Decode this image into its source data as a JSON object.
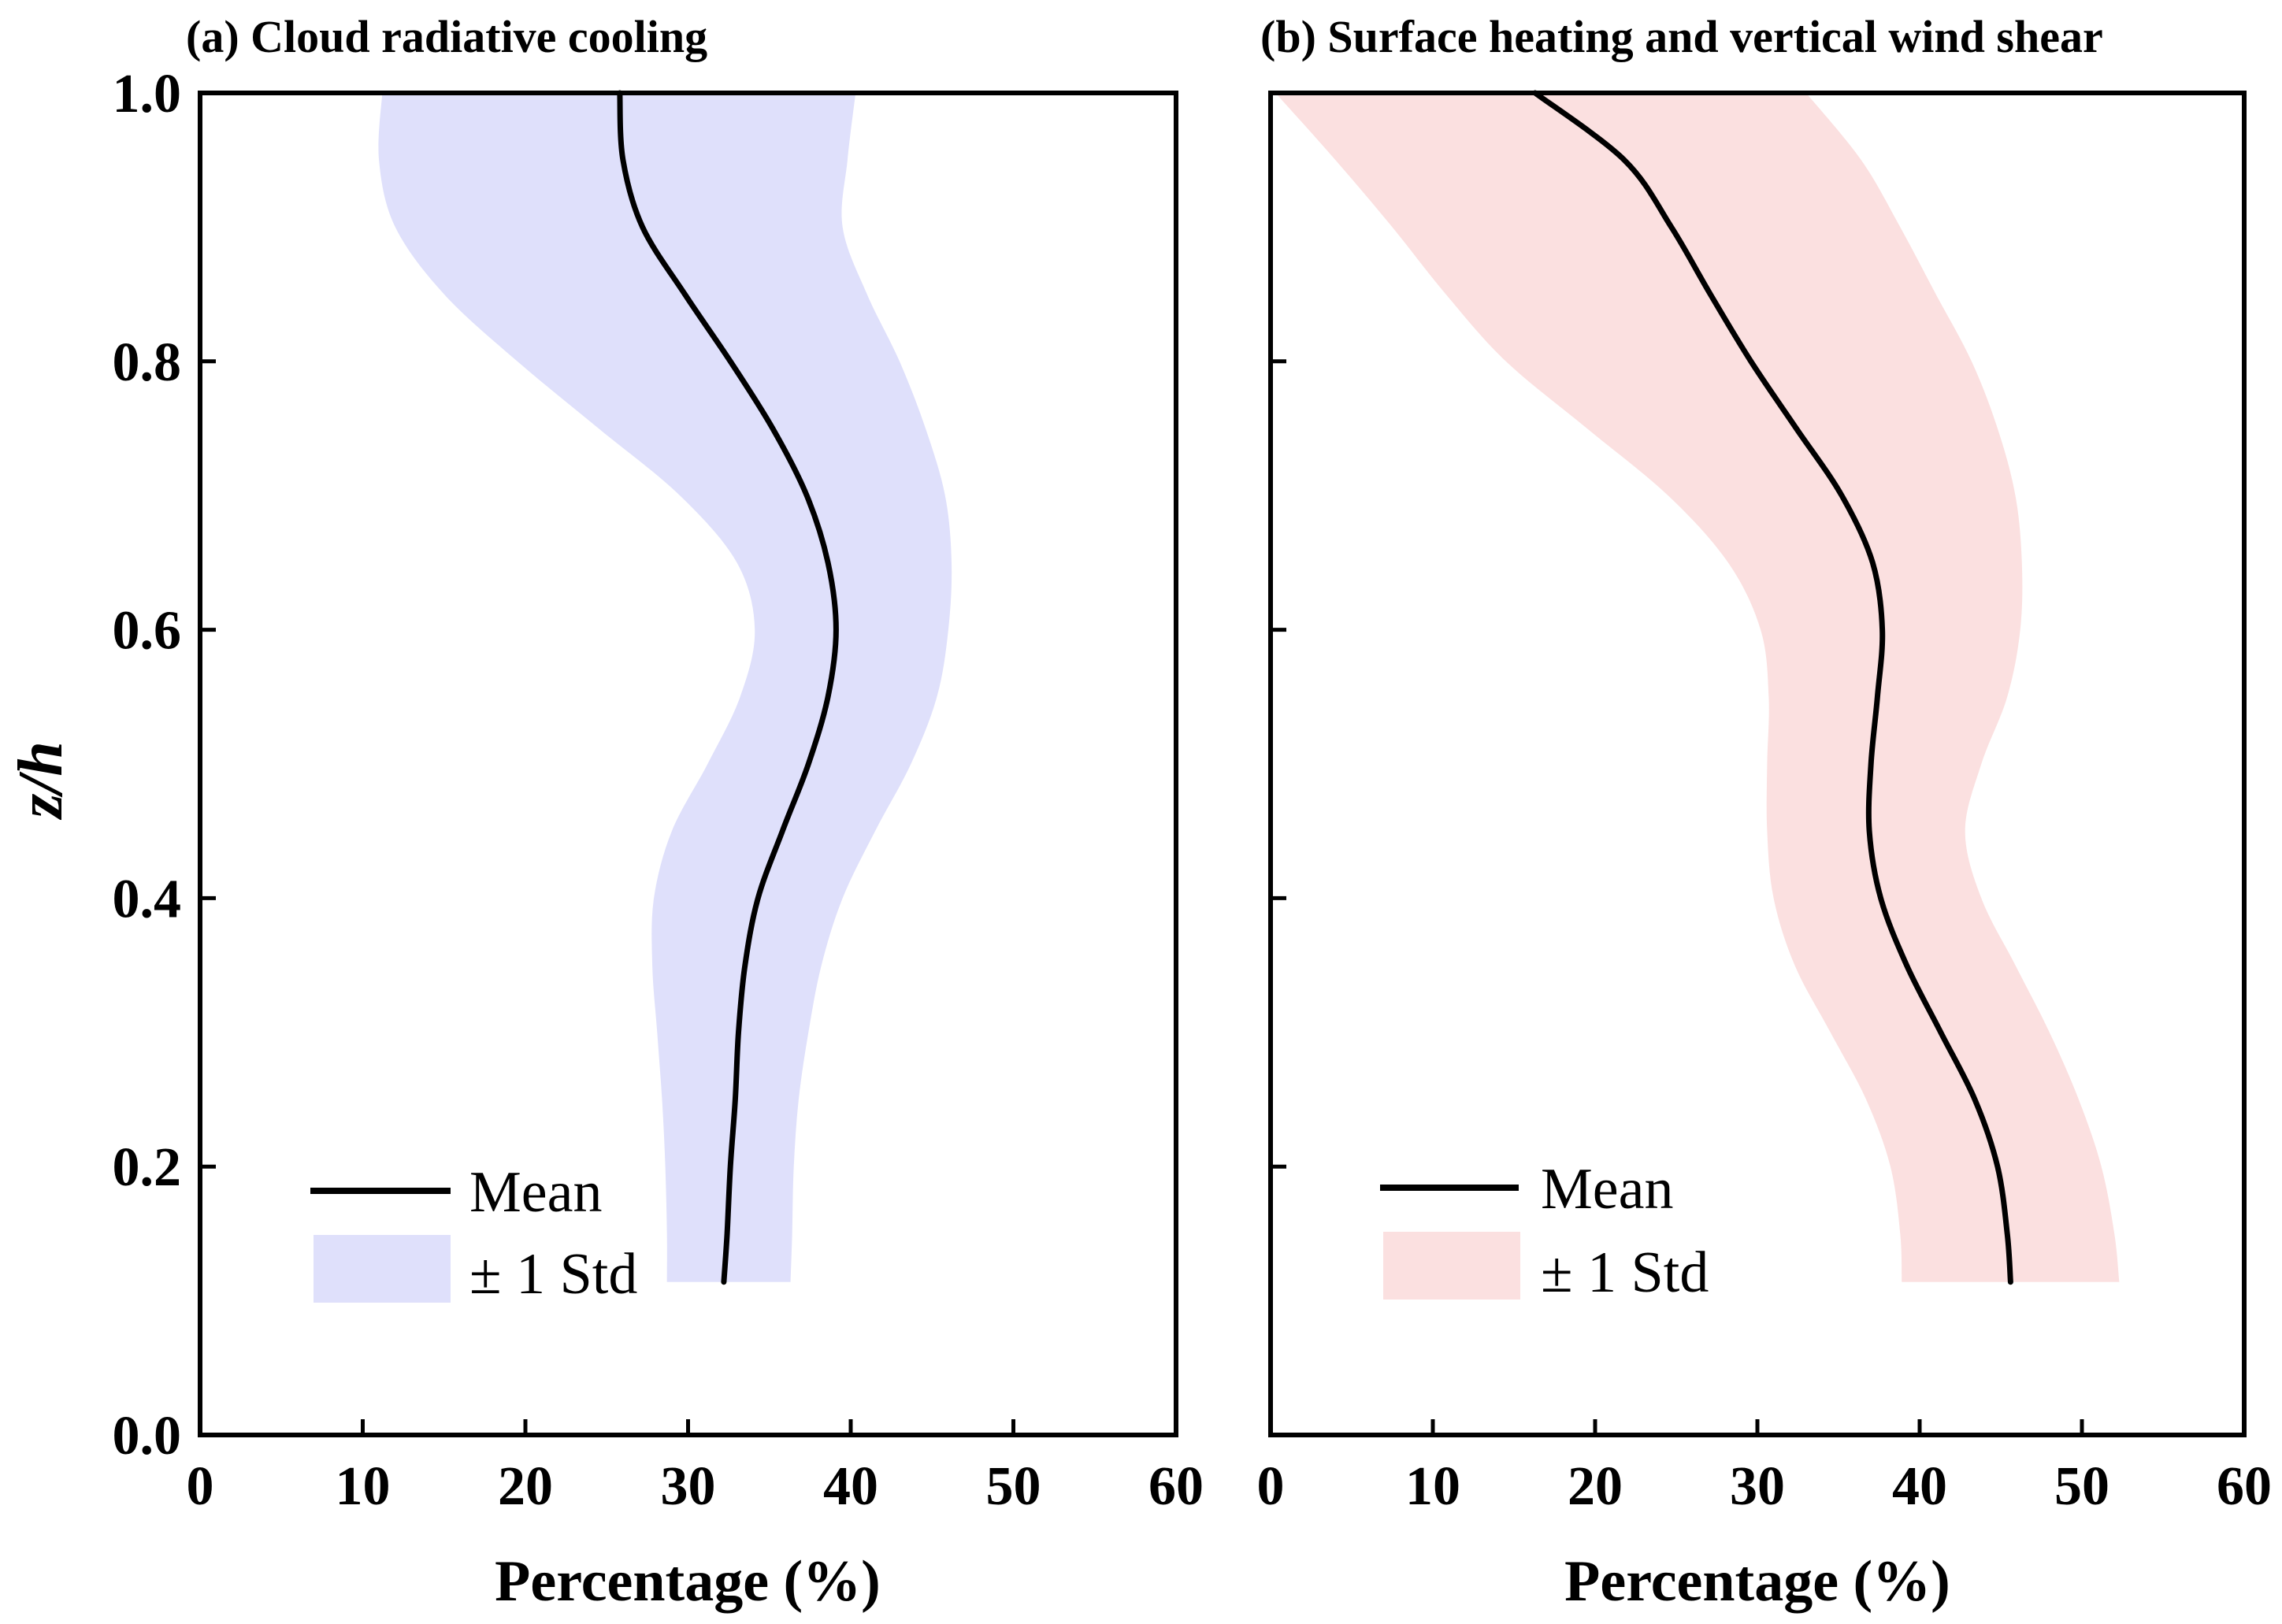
{
  "chart_data": [
    {
      "type": "line",
      "title": "(a) Cloud radiative cooling",
      "xlabel": "Percentage (%)",
      "ylabel": "z/h",
      "xlim": [
        0,
        60
      ],
      "ylim": [
        0,
        1.0
      ],
      "xticks": [
        "0",
        "10",
        "20",
        "30",
        "40",
        "50",
        "60"
      ],
      "yticks": [
        "0.0",
        "0.2",
        "0.4",
        "0.6",
        "0.8",
        "1.0"
      ],
      "legend": {
        "mean_label": "Mean",
        "std_label": "± 1 Std",
        "position": "lower-left"
      },
      "band_color": "#dfe0fb",
      "series": [
        {
          "name": "Mean",
          "points": [
            [
              32.2,
              0.114
            ],
            [
              32.4,
              0.15
            ],
            [
              32.6,
              0.2
            ],
            [
              32.9,
              0.25
            ],
            [
              33.1,
              0.3
            ],
            [
              33.5,
              0.35
            ],
            [
              34.3,
              0.4
            ],
            [
              35.8,
              0.45
            ],
            [
              37.4,
              0.5
            ],
            [
              38.6,
              0.55
            ],
            [
              39.1,
              0.6
            ],
            [
              38.6,
              0.65
            ],
            [
              37.3,
              0.7
            ],
            [
              35.2,
              0.75
            ],
            [
              32.6,
              0.8
            ],
            [
              29.8,
              0.85
            ],
            [
              27.2,
              0.9
            ],
            [
              26.0,
              0.95
            ],
            [
              25.8,
              1.0
            ]
          ]
        },
        {
          "name": "± 1 Std",
          "lower": [
            [
              28.7,
              0.114
            ],
            [
              28.7,
              0.15
            ],
            [
              28.6,
              0.2
            ],
            [
              28.4,
              0.25
            ],
            [
              28.1,
              0.3
            ],
            [
              27.8,
              0.35
            ],
            [
              27.9,
              0.4
            ],
            [
              29.0,
              0.45
            ],
            [
              31.2,
              0.5
            ],
            [
              33.2,
              0.55
            ],
            [
              34.1,
              0.6
            ],
            [
              33.0,
              0.65
            ],
            [
              29.5,
              0.7
            ],
            [
              24.5,
              0.75
            ],
            [
              19.5,
              0.8
            ],
            [
              15.0,
              0.85
            ],
            [
              12.0,
              0.9
            ],
            [
              11.0,
              0.95
            ],
            [
              11.2,
              1.0
            ]
          ],
          "upper": [
            [
              36.3,
              0.114
            ],
            [
              36.4,
              0.15
            ],
            [
              36.5,
              0.2
            ],
            [
              36.8,
              0.25
            ],
            [
              37.4,
              0.3
            ],
            [
              38.2,
              0.35
            ],
            [
              39.5,
              0.4
            ],
            [
              41.5,
              0.45
            ],
            [
              43.7,
              0.5
            ],
            [
              45.3,
              0.55
            ],
            [
              46.0,
              0.6
            ],
            [
              46.2,
              0.65
            ],
            [
              45.8,
              0.7
            ],
            [
              44.6,
              0.75
            ],
            [
              43.0,
              0.8
            ],
            [
              41.0,
              0.85
            ],
            [
              39.5,
              0.9
            ],
            [
              39.8,
              0.95
            ],
            [
              40.3,
              1.0
            ]
          ]
        }
      ]
    },
    {
      "type": "line",
      "title": "(b) Surface heating and vertical wind shear",
      "xlabel": "Percentage (%)",
      "ylabel": "",
      "xlim": [
        0,
        60
      ],
      "ylim": [
        0,
        1.0
      ],
      "xticks": [
        "0",
        "10",
        "20",
        "30",
        "40",
        "50",
        "60"
      ],
      "yticks": [],
      "legend": {
        "mean_label": "Mean",
        "std_label": "± 1 Std",
        "position": "lower-left"
      },
      "band_color": "#fbe0e0",
      "series": [
        {
          "name": "Mean",
          "points": [
            [
              45.6,
              0.114
            ],
            [
              45.4,
              0.15
            ],
            [
              44.8,
              0.2
            ],
            [
              43.4,
              0.25
            ],
            [
              41.3,
              0.3
            ],
            [
              39.2,
              0.35
            ],
            [
              37.6,
              0.4
            ],
            [
              36.9,
              0.45
            ],
            [
              37.0,
              0.5
            ],
            [
              37.4,
              0.55
            ],
            [
              37.7,
              0.6
            ],
            [
              37.1,
              0.65
            ],
            [
              35.2,
              0.7
            ],
            [
              32.4,
              0.75
            ],
            [
              29.6,
              0.8
            ],
            [
              27.1,
              0.85
            ],
            [
              24.7,
              0.9
            ],
            [
              21.8,
              0.95
            ],
            [
              16.3,
              1.0
            ]
          ]
        },
        {
          "name": "± 1 Std",
          "lower": [
            [
              38.9,
              0.114
            ],
            [
              38.8,
              0.15
            ],
            [
              38.2,
              0.2
            ],
            [
              36.7,
              0.25
            ],
            [
              34.5,
              0.3
            ],
            [
              32.3,
              0.35
            ],
            [
              31.0,
              0.4
            ],
            [
              30.6,
              0.45
            ],
            [
              30.6,
              0.5
            ],
            [
              30.7,
              0.55
            ],
            [
              30.2,
              0.6
            ],
            [
              28.2,
              0.65
            ],
            [
              24.5,
              0.7
            ],
            [
              19.5,
              0.75
            ],
            [
              14.5,
              0.8
            ],
            [
              10.8,
              0.85
            ],
            [
              7.5,
              0.9
            ],
            [
              4.0,
              0.95
            ],
            [
              0.3,
              1.0
            ]
          ],
          "upper": [
            [
              52.3,
              0.114
            ],
            [
              52.0,
              0.15
            ],
            [
              51.2,
              0.2
            ],
            [
              49.8,
              0.25
            ],
            [
              48.0,
              0.3
            ],
            [
              45.9,
              0.35
            ],
            [
              43.8,
              0.4
            ],
            [
              42.8,
              0.45
            ],
            [
              43.8,
              0.5
            ],
            [
              45.4,
              0.55
            ],
            [
              46.2,
              0.6
            ],
            [
              46.3,
              0.65
            ],
            [
              45.9,
              0.7
            ],
            [
              44.8,
              0.75
            ],
            [
              43.2,
              0.8
            ],
            [
              41.0,
              0.85
            ],
            [
              38.8,
              0.9
            ],
            [
              36.4,
              0.95
            ],
            [
              33.0,
              1.0
            ]
          ]
        }
      ]
    }
  ]
}
